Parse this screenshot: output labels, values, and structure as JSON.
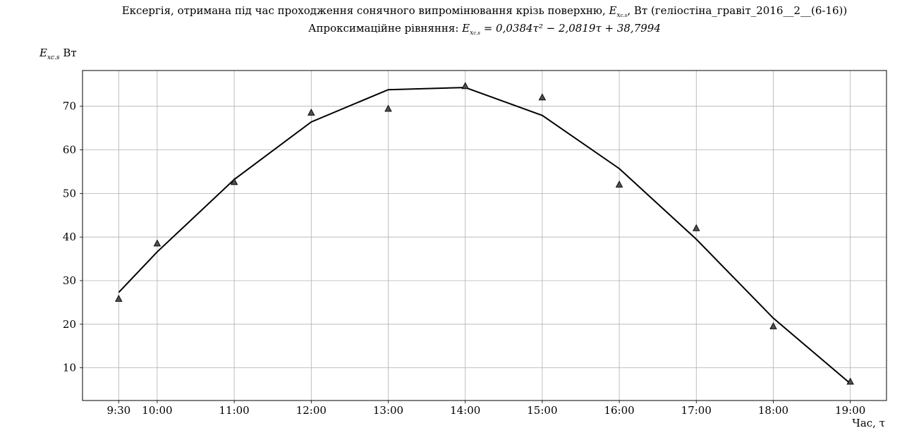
{
  "chart_data": {
    "type": "scatter+line",
    "title_line1_pre": "Ексергія, отримана під час проходження сонячного випромінювання крізь поверхню, ",
    "title_line1_var": "E",
    "title_line1_sub": "x",
    "title_line1_subsub": "c.s",
    "title_line1_post": ", Вт (геліостіна_гравіт_2016__2__(6-16))",
    "title_line2_pre": "Апроксимаційне рівняння: ",
    "title_line2_eq": "= 0,0384τ² − 2,0819τ + 38,7994",
    "ylabel_var": "E",
    "ylabel_sub": "xc.s",
    "ylabel_unit": "Вт",
    "xlabel": "Час, τ",
    "x_tick_labels": [
      "9:30",
      "10:00",
      "11:00",
      "12:00",
      "13:00",
      "14:00",
      "15:00",
      "16:00",
      "17:00",
      "18:00",
      "19:00"
    ],
    "x_hours": [
      9.5,
      10,
      11,
      12,
      13,
      14,
      15,
      16,
      17,
      18,
      19
    ],
    "xlim": [
      9.03,
      19.47
    ],
    "ylim": [
      2.5,
      78.2
    ],
    "y_ticks": [
      10,
      20,
      30,
      40,
      50,
      60,
      70
    ],
    "grid": true,
    "series": [
      {
        "kind": "markers",
        "marker": "triangle",
        "values": [
          25.8,
          38.5,
          52.6,
          68.5,
          69.4,
          74.6,
          72.0,
          52.0,
          42.0,
          19.5,
          6.8
        ]
      },
      {
        "kind": "line",
        "values": [
          27.3,
          36.6,
          53.2,
          66.4,
          73.8,
          74.3,
          67.9,
          55.7,
          39.5,
          21.4,
          6.4
        ]
      }
    ],
    "colors": {
      "line": "#000000",
      "marker_fill": "#4d4d4d",
      "grid": "#b0b0b0"
    }
  }
}
